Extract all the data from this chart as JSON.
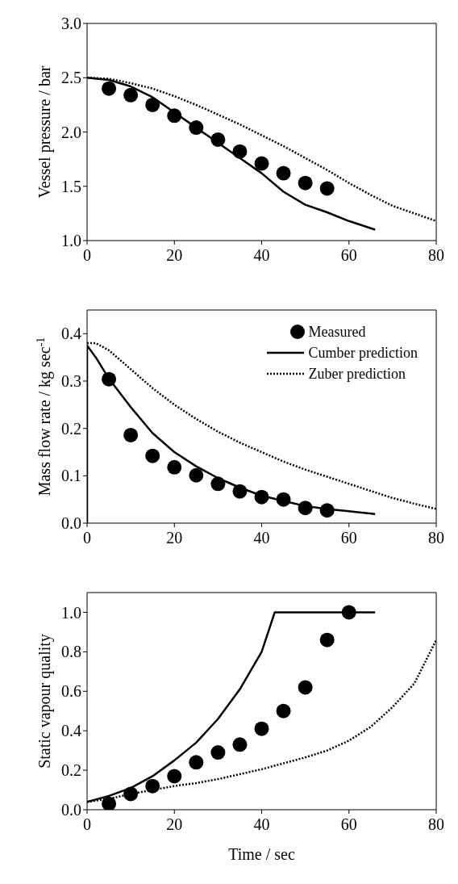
{
  "chart_data": [
    {
      "type": "line",
      "ylabel": "Vessel pressure / bar",
      "xlim": [
        0,
        80
      ],
      "xticks": [
        0,
        20,
        40,
        60,
        80
      ],
      "ylim": [
        1,
        3
      ],
      "yticks": [
        {
          "value": 1,
          "label": "1.0"
        },
        1.5,
        {
          "value": 2,
          "label": "2.0"
        },
        2.5,
        {
          "value": 3,
          "label": "3.0"
        }
      ],
      "grid": false,
      "legend": false,
      "series": [
        {
          "type": "scatter",
          "color": "#000000",
          "marker": "circle",
          "x": [
            5,
            10,
            15,
            20,
            25,
            30,
            35,
            40,
            45,
            50,
            55
          ],
          "values": [
            2.4,
            2.34,
            2.25,
            2.15,
            2.04,
            1.93,
            1.82,
            1.71,
            1.62,
            1.53,
            1.48
          ]
        },
        {
          "color": "#000000",
          "marker": "none",
          "line_style": "solid",
          "x": [
            0,
            5,
            10,
            15,
            20,
            25,
            30,
            35,
            40,
            45,
            50,
            55,
            60,
            66
          ],
          "values": [
            2.5,
            2.48,
            2.42,
            2.32,
            2.18,
            2.04,
            1.9,
            1.76,
            1.62,
            1.45,
            1.33,
            1.26,
            1.18,
            1.1
          ]
        },
        {
          "color": "#000000",
          "marker": "none",
          "line_style": "dotted",
          "x": [
            0,
            5,
            10,
            15,
            20,
            25,
            30,
            35,
            40,
            45,
            50,
            55,
            60,
            65,
            70,
            75,
            80
          ],
          "values": [
            2.5,
            2.49,
            2.45,
            2.4,
            2.33,
            2.25,
            2.16,
            2.07,
            1.97,
            1.87,
            1.76,
            1.65,
            1.53,
            1.42,
            1.32,
            1.25,
            1.18
          ]
        }
      ]
    },
    {
      "type": "line",
      "ylabel": "Mass flow rate / kg sec$^{-1}$",
      "xlim": [
        0,
        80
      ],
      "xticks": [
        0,
        20,
        40,
        60,
        80
      ],
      "ylim": [
        0,
        0.45
      ],
      "yticks": [
        {
          "value": 0,
          "label": "0.0"
        },
        0.1,
        0.2,
        0.3,
        0.4
      ],
      "grid": false,
      "legend": "top right",
      "series": [
        {
          "type": "scatter",
          "name": "Measured",
          "color": "#000000",
          "marker": "circle",
          "x": [
            5,
            10,
            15,
            20,
            25,
            30,
            35,
            40,
            45,
            50,
            55
          ],
          "values": [
            0.304,
            0.186,
            0.142,
            0.118,
            0.101,
            0.083,
            0.067,
            0.055,
            0.05,
            0.032,
            0.027
          ]
        },
        {
          "name": "Cumber prediction",
          "color": "#000000",
          "marker": "none",
          "line_style": "solid",
          "x": [
            0,
            0,
            2,
            5,
            10,
            15,
            20,
            25,
            30,
            35,
            40,
            45,
            50,
            55,
            60,
            66
          ],
          "values": [
            0,
            0.375,
            0.35,
            0.305,
            0.245,
            0.19,
            0.15,
            0.12,
            0.095,
            0.075,
            0.058,
            0.047,
            0.036,
            0.03,
            0.025,
            0.019
          ]
        },
        {
          "name": "Zuber prediction",
          "color": "#000000",
          "marker": "none",
          "line_style": "dotted",
          "x": [
            0,
            2,
            5,
            10,
            15,
            20,
            25,
            30,
            35,
            40,
            45,
            50,
            55,
            60,
            65,
            70,
            75,
            80
          ],
          "values": [
            0.38,
            0.38,
            0.365,
            0.325,
            0.285,
            0.25,
            0.22,
            0.193,
            0.17,
            0.15,
            0.13,
            0.113,
            0.098,
            0.083,
            0.068,
            0.053,
            0.041,
            0.03
          ]
        }
      ]
    },
    {
      "type": "line",
      "xlabel": "Time / sec",
      "ylabel": "Static vapour quality",
      "xlim": [
        0,
        80
      ],
      "xticks": [
        0,
        20,
        40,
        60,
        80
      ],
      "ylim": [
        0,
        1.1
      ],
      "yticks": [
        {
          "value": 0,
          "label": "0.0"
        },
        0.2,
        0.4,
        0.6,
        0.8,
        {
          "value": 1,
          "label": "1.0"
        }
      ],
      "grid": false,
      "legend": false,
      "series": [
        {
          "type": "scatter",
          "color": "#000000",
          "marker": "circle",
          "x": [
            5,
            10,
            15,
            20,
            25,
            30,
            35,
            40,
            45,
            50,
            55,
            60
          ],
          "values": [
            0.03,
            0.08,
            0.12,
            0.17,
            0.24,
            0.29,
            0.33,
            0.41,
            0.5,
            0.62,
            0.86,
            1.0
          ]
        },
        {
          "color": "#000000",
          "marker": "none",
          "line_style": "solid",
          "x": [
            0,
            5,
            10,
            15,
            20,
            25,
            30,
            35,
            40,
            43,
            46,
            66
          ],
          "values": [
            0.04,
            0.07,
            0.11,
            0.17,
            0.25,
            0.34,
            0.46,
            0.61,
            0.8,
            1.0,
            1.0,
            1.0
          ]
        },
        {
          "color": "#000000",
          "marker": "none",
          "line_style": "dotted",
          "x": [
            0,
            5,
            10,
            15,
            20,
            25,
            30,
            35,
            40,
            45,
            50,
            55,
            60,
            65,
            70,
            75,
            80
          ],
          "values": [
            0.04,
            0.055,
            0.08,
            0.1,
            0.12,
            0.135,
            0.155,
            0.18,
            0.205,
            0.235,
            0.265,
            0.3,
            0.35,
            0.42,
            0.52,
            0.64,
            0.86
          ]
        }
      ]
    }
  ]
}
